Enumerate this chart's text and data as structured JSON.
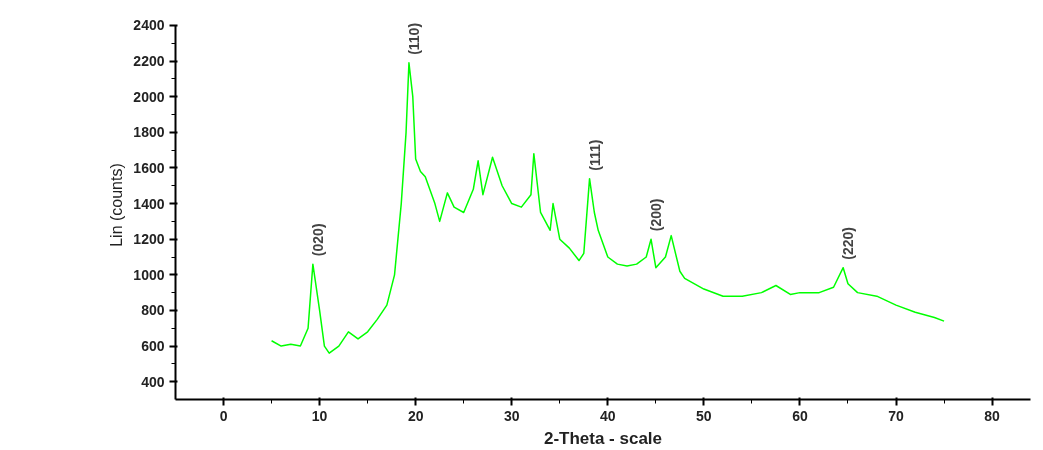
{
  "chart_data": {
    "type": "line",
    "xlabel": "2-Theta - scale",
    "ylabel": "Lin (counts)",
    "x": [
      5,
      6,
      7,
      8,
      8.8,
      9.3,
      10,
      10.5,
      11,
      12,
      13,
      14,
      15,
      16,
      17,
      17.8,
      18.5,
      19,
      19.3,
      19.7,
      20,
      20.5,
      21,
      22,
      22.5,
      23.3,
      24,
      25,
      26,
      26.5,
      27,
      28,
      29,
      30,
      31,
      32,
      32.3,
      33,
      34,
      34.3,
      35,
      36,
      37,
      37.5,
      38.1,
      38.6,
      39,
      40,
      41,
      42,
      43,
      44,
      44.5,
      45,
      46,
      46.6,
      47.5,
      48,
      50,
      52,
      54,
      56,
      57.5,
      59,
      60,
      62,
      63.5,
      64.5,
      65,
      66,
      68,
      70,
      72,
      74,
      75
    ],
    "series": [
      {
        "color": "#00ff00",
        "values": [
          630,
          600,
          610,
          600,
          700,
          1060,
          800,
          600,
          560,
          600,
          680,
          640,
          680,
          750,
          830,
          1000,
          1400,
          1800,
          2190,
          2000,
          1650,
          1580,
          1550,
          1400,
          1300,
          1460,
          1380,
          1350,
          1480,
          1640,
          1450,
          1660,
          1500,
          1400,
          1380,
          1450,
          1680,
          1350,
          1250,
          1400,
          1200,
          1150,
          1080,
          1120,
          1540,
          1350,
          1250,
          1100,
          1060,
          1050,
          1060,
          1100,
          1200,
          1040,
          1100,
          1220,
          1020,
          980,
          920,
          880,
          880,
          900,
          940,
          890,
          900,
          900,
          930,
          1040,
          950,
          900,
          880,
          830,
          790,
          760,
          740
        ]
      }
    ],
    "xlim": [
      -5,
      84
    ],
    "ylim": [
      300,
      2400
    ],
    "xticks": [
      0,
      10,
      20,
      30,
      40,
      50,
      60,
      70,
      80
    ],
    "yticks": [
      400,
      600,
      800,
      1000,
      1200,
      1400,
      1600,
      1800,
      2000,
      2200,
      2400
    ],
    "grid": false,
    "marker": "none",
    "line_style": "solid",
    "annotations": [
      {
        "text": "(020)",
        "x": 9.3,
        "y": 1060
      },
      {
        "text": "(110)",
        "x": 19.3,
        "y": 2190
      },
      {
        "text": "(111)",
        "x": 38.1,
        "y": 1540
      },
      {
        "text": "(200)",
        "x": 44.5,
        "y": 1200
      },
      {
        "text": "(220)",
        "x": 64.5,
        "y": 1040
      }
    ]
  }
}
